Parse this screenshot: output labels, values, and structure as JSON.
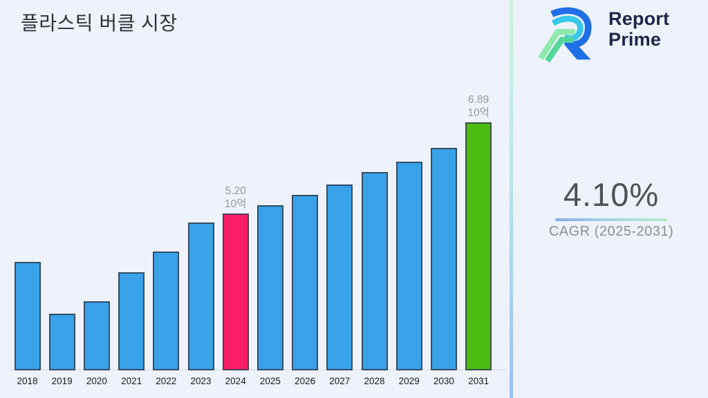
{
  "title": "플라스틱 버클 시장",
  "logo": {
    "line1": "Report",
    "line2": "Prime"
  },
  "cagr": {
    "value": "4.10%",
    "label": "CAGR (2025-2031)"
  },
  "colors": {
    "background": "#EDF2FB",
    "bar_default": "#39A2E8",
    "bar_current_year": "#FC1E66",
    "bar_forecast_end": "#4CBB10",
    "logo_text": "#1C2749",
    "logo_blue": "#1E6FE8",
    "logo_cyan": "#38C8EC",
    "logo_green_light": "#8FE9AD",
    "logo_green_mint": "#52D79B"
  },
  "chart_data": {
    "type": "bar",
    "title": "플라스틱 버클 시장",
    "xlabel": "",
    "ylabel": "",
    "unit": "10억",
    "value_axis_hidden": true,
    "ylim_implied": [
      2.29,
      7.0
    ],
    "grid": false,
    "legend": "none",
    "categories": [
      "2018",
      "2019",
      "2020",
      "2021",
      "2022",
      "2023",
      "2024",
      "2025",
      "2026",
      "2027",
      "2028",
      "2029",
      "2030",
      "2031"
    ],
    "values": [
      4.3,
      3.34,
      3.57,
      4.11,
      4.5,
      5.03,
      5.2,
      5.35,
      5.55,
      5.74,
      5.97,
      6.16,
      6.42,
      6.89
    ],
    "bar_colors": [
      "#39A2E8",
      "#39A2E8",
      "#39A2E8",
      "#39A2E8",
      "#39A2E8",
      "#39A2E8",
      "#FC1E66",
      "#39A2E8",
      "#39A2E8",
      "#39A2E8",
      "#39A2E8",
      "#39A2E8",
      "#39A2E8",
      "#4CBB10"
    ],
    "data_labels": [
      {
        "index": 6,
        "lines": [
          "5.20",
          "10억"
        ]
      },
      {
        "index": 13,
        "lines": [
          "6.89",
          "10억"
        ]
      }
    ]
  }
}
